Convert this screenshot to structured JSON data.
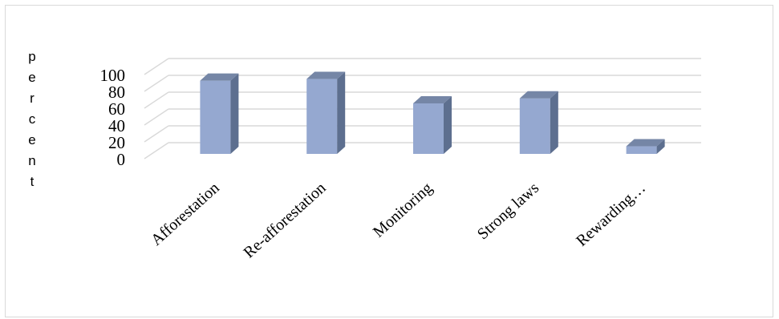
{
  "chart_data": {
    "type": "bar",
    "style": "3d-column",
    "categories": [
      "Afforestation",
      "Re-afforestation",
      "Monitoring",
      "Strong laws",
      "Rewarding…"
    ],
    "values": [
      87,
      89,
      60,
      66,
      9
    ],
    "ylabel": "percent",
    "yticks": [
      "0",
      "20",
      "40",
      "60",
      "80",
      "100"
    ],
    "ylim": [
      0,
      100
    ],
    "grid": true,
    "colors": {
      "front": "#95a8d0",
      "side": "#5d6f8f",
      "top": "#7586a6",
      "grid": "#d9d9d9"
    }
  }
}
